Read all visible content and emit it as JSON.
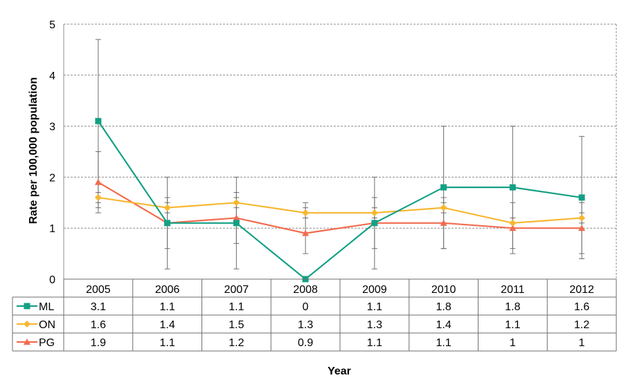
{
  "chart_data": {
    "type": "line",
    "xlabel": "Year",
    "ylabel": "Rate per 100,000 population",
    "ylim": [
      0,
      5
    ],
    "yticks": [
      0,
      1,
      2,
      3,
      4,
      5
    ],
    "categories": [
      "2005",
      "2006",
      "2007",
      "2008",
      "2009",
      "2010",
      "2011",
      "2012"
    ],
    "grid": "horizontal dashed",
    "legend": "data table below chart",
    "series": [
      {
        "name": "ML",
        "color": "#14a085",
        "marker": "square",
        "values": [
          3.1,
          1.1,
          1.1,
          0,
          1.1,
          1.8,
          1.8,
          1.6
        ],
        "labels": [
          "3.1",
          "1.1",
          "1.1",
          "0",
          "1.1",
          "1.8",
          "1.8",
          "1.6"
        ],
        "error_low": [
          1.4,
          0.2,
          0.2,
          0,
          0.2,
          0.6,
          0.6,
          0.4
        ],
        "error_high": [
          4.7,
          2.0,
          2.0,
          0,
          2.0,
          3.0,
          3.0,
          2.8
        ]
      },
      {
        "name": "ON",
        "color": "#f7b731",
        "marker": "diamond",
        "values": [
          1.6,
          1.4,
          1.5,
          1.3,
          1.3,
          1.4,
          1.1,
          1.2
        ],
        "labels": [
          "1.6",
          "1.4",
          "1.5",
          "1.3",
          "1.3",
          "1.4",
          "1.1",
          "1.2"
        ],
        "error_low": [
          1.5,
          1.3,
          1.4,
          1.2,
          1.2,
          1.3,
          1.0,
          1.1
        ],
        "error_high": [
          1.7,
          1.5,
          1.6,
          1.4,
          1.4,
          1.5,
          1.2,
          1.3
        ]
      },
      {
        "name": "PG",
        "color": "#f26b4f",
        "marker": "triangle",
        "values": [
          1.9,
          1.1,
          1.2,
          0.9,
          1.1,
          1.1,
          1.0,
          1.0
        ],
        "labels": [
          "1.9",
          "1.1",
          "1.2",
          "0.9",
          "1.1",
          "1.1",
          "1",
          "1"
        ],
        "error_low": [
          1.3,
          0.6,
          0.7,
          0.5,
          0.6,
          0.6,
          0.5,
          0.5
        ],
        "error_high": [
          2.5,
          1.6,
          1.7,
          1.5,
          1.6,
          1.6,
          1.5,
          1.5
        ]
      }
    ]
  }
}
